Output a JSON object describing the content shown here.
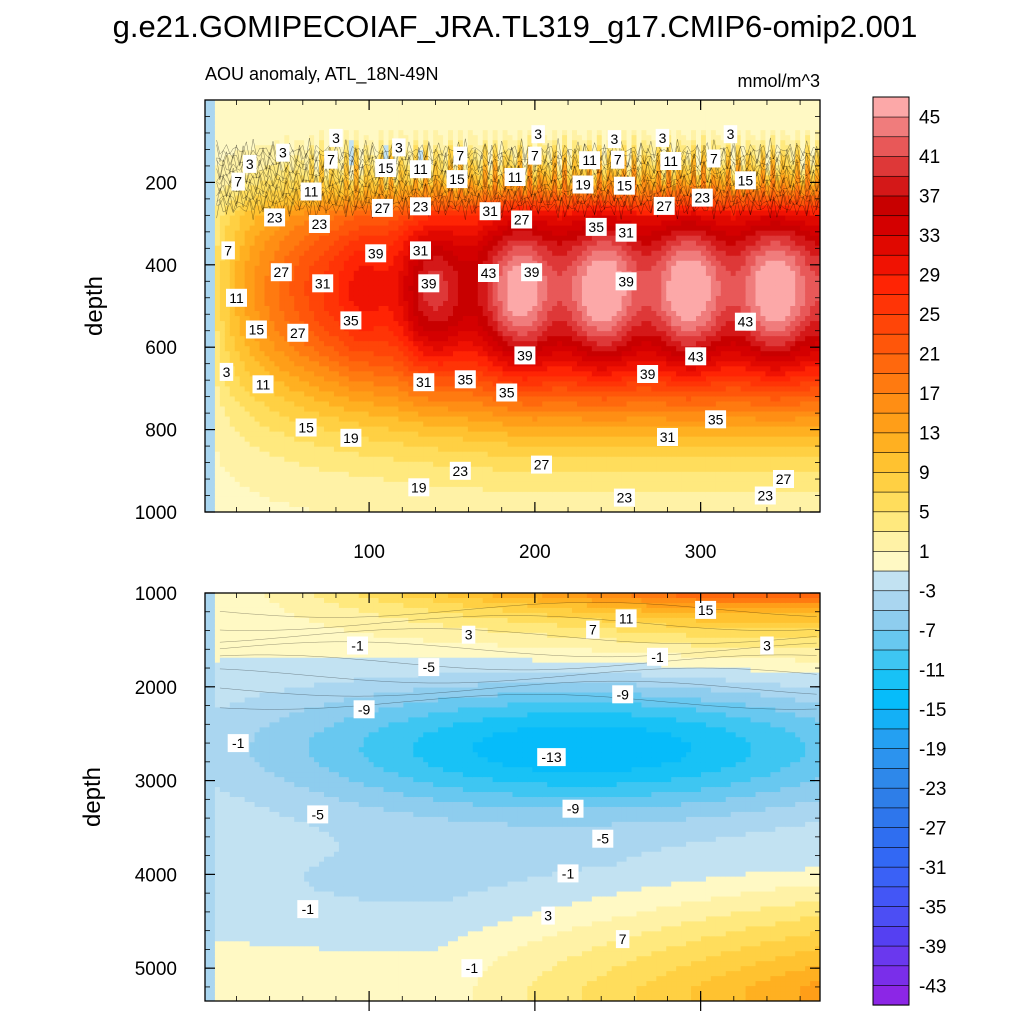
{
  "chart_data": {
    "type": "heatmap",
    "title": "g.e21.GOMIPECOIAF_JRA.TL319_g17.CMIP6-omip2.001",
    "subtitle_left": "AOU anomaly, ATL_18N-49N",
    "subtitle_right": "mmol/m^3",
    "ylabel": "depth",
    "xlabel": "",
    "xlim": [
      1,
      372
    ],
    "xticks": [
      100,
      200,
      300
    ],
    "xtick_labels": [
      "100",
      "200",
      "300"
    ],
    "panels": [
      {
        "name": "upper",
        "ylim": [
          1000,
          0
        ],
        "yticks": [
          200,
          400,
          600,
          800,
          1000
        ],
        "ytick_labels": [
          "200",
          "400",
          "600",
          "800",
          "1000"
        ],
        "contour_labels": [
          {
            "x": 80,
            "y": 92,
            "text": "3"
          },
          {
            "x": 118,
            "y": 115,
            "text": "3"
          },
          {
            "x": 202,
            "y": 83,
            "text": "3"
          },
          {
            "x": 248,
            "y": 95,
            "text": "3"
          },
          {
            "x": 277,
            "y": 92,
            "text": "3"
          },
          {
            "x": 318,
            "y": 83,
            "text": "3"
          },
          {
            "x": 48,
            "y": 128,
            "text": "3"
          },
          {
            "x": 28,
            "y": 155,
            "text": "3"
          },
          {
            "x": 77,
            "y": 145,
            "text": "7"
          },
          {
            "x": 155,
            "y": 135,
            "text": "7"
          },
          {
            "x": 200,
            "y": 135,
            "text": "7"
          },
          {
            "x": 250,
            "y": 145,
            "text": "7"
          },
          {
            "x": 308,
            "y": 142,
            "text": "7"
          },
          {
            "x": 21,
            "y": 198,
            "text": "7"
          },
          {
            "x": 110,
            "y": 165,
            "text": "15"
          },
          {
            "x": 131,
            "y": 168,
            "text": "11"
          },
          {
            "x": 65,
            "y": 222,
            "text": "11"
          },
          {
            "x": 153,
            "y": 192,
            "text": "15"
          },
          {
            "x": 188,
            "y": 187,
            "text": "11"
          },
          {
            "x": 233,
            "y": 146,
            "text": "11"
          },
          {
            "x": 282,
            "y": 148,
            "text": "11"
          },
          {
            "x": 229,
            "y": 205,
            "text": "19"
          },
          {
            "x": 254,
            "y": 208,
            "text": "15"
          },
          {
            "x": 327,
            "y": 195,
            "text": "15"
          },
          {
            "x": 43,
            "y": 285,
            "text": "23"
          },
          {
            "x": 70,
            "y": 301,
            "text": "23"
          },
          {
            "x": 108,
            "y": 262,
            "text": "27"
          },
          {
            "x": 131,
            "y": 258,
            "text": "23"
          },
          {
            "x": 173,
            "y": 270,
            "text": "31"
          },
          {
            "x": 192,
            "y": 290,
            "text": "27"
          },
          {
            "x": 237,
            "y": 308,
            "text": "35"
          },
          {
            "x": 255,
            "y": 322,
            "text": "31"
          },
          {
            "x": 278,
            "y": 257,
            "text": "27"
          },
          {
            "x": 301,
            "y": 237,
            "text": "23"
          },
          {
            "x": 15,
            "y": 365,
            "text": "7"
          },
          {
            "x": 47,
            "y": 418,
            "text": "27"
          },
          {
            "x": 72,
            "y": 445,
            "text": "31"
          },
          {
            "x": 104,
            "y": 372,
            "text": "39"
          },
          {
            "x": 131,
            "y": 365,
            "text": "31"
          },
          {
            "x": 136,
            "y": 445,
            "text": "39"
          },
          {
            "x": 172,
            "y": 420,
            "text": "43"
          },
          {
            "x": 198,
            "y": 418,
            "text": "39"
          },
          {
            "x": 255,
            "y": 440,
            "text": "39"
          },
          {
            "x": 20,
            "y": 480,
            "text": "11"
          },
          {
            "x": 32,
            "y": 557,
            "text": "15"
          },
          {
            "x": 57,
            "y": 565,
            "text": "27"
          },
          {
            "x": 89,
            "y": 535,
            "text": "35"
          },
          {
            "x": 194,
            "y": 620,
            "text": "39"
          },
          {
            "x": 297,
            "y": 622,
            "text": "43"
          },
          {
            "x": 327,
            "y": 538,
            "text": "43"
          },
          {
            "x": 14,
            "y": 660,
            "text": "3"
          },
          {
            "x": 36,
            "y": 690,
            "text": "11"
          },
          {
            "x": 133,
            "y": 685,
            "text": "31"
          },
          {
            "x": 158,
            "y": 678,
            "text": "35"
          },
          {
            "x": 183,
            "y": 710,
            "text": "35"
          },
          {
            "x": 268,
            "y": 665,
            "text": "39"
          },
          {
            "x": 62,
            "y": 795,
            "text": "15"
          },
          {
            "x": 89,
            "y": 820,
            "text": "19"
          },
          {
            "x": 280,
            "y": 818,
            "text": "31"
          },
          {
            "x": 309,
            "y": 775,
            "text": "35"
          },
          {
            "x": 130,
            "y": 940,
            "text": "19"
          },
          {
            "x": 155,
            "y": 900,
            "text": "23"
          },
          {
            "x": 204,
            "y": 885,
            "text": "27"
          },
          {
            "x": 254,
            "y": 965,
            "text": "23"
          },
          {
            "x": 350,
            "y": 920,
            "text": "27"
          },
          {
            "x": 339,
            "y": 960,
            "text": "23"
          }
        ]
      },
      {
        "name": "lower",
        "ylim": [
          5350,
          1000
        ],
        "yticks": [
          1000,
          2000,
          3000,
          4000,
          5000
        ],
        "ytick_labels": [
          "1000",
          "2000",
          "3000",
          "4000",
          "5000"
        ],
        "contour_labels": [
          {
            "x": 93,
            "y": 1560,
            "text": "-1"
          },
          {
            "x": 160,
            "y": 1445,
            "text": "3"
          },
          {
            "x": 235,
            "y": 1390,
            "text": "7"
          },
          {
            "x": 255,
            "y": 1270,
            "text": "11"
          },
          {
            "x": 303,
            "y": 1180,
            "text": "15"
          },
          {
            "x": 340,
            "y": 1560,
            "text": "3"
          },
          {
            "x": 274,
            "y": 1680,
            "text": "-1"
          },
          {
            "x": 136,
            "y": 1790,
            "text": "-5"
          },
          {
            "x": 253,
            "y": 2080,
            "text": "-9"
          },
          {
            "x": 97,
            "y": 2240,
            "text": "-9"
          },
          {
            "x": 21,
            "y": 2600,
            "text": "-1"
          },
          {
            "x": 210,
            "y": 2750,
            "text": "-13"
          },
          {
            "x": 69,
            "y": 3360,
            "text": "-5"
          },
          {
            "x": 223,
            "y": 3300,
            "text": "-9"
          },
          {
            "x": 241,
            "y": 3620,
            "text": "-5"
          },
          {
            "x": 220,
            "y": 3990,
            "text": "-1"
          },
          {
            "x": 63,
            "y": 4370,
            "text": "-1"
          },
          {
            "x": 208,
            "y": 4440,
            "text": "3"
          },
          {
            "x": 253,
            "y": 4690,
            "text": "7"
          },
          {
            "x": 162,
            "y": 5000,
            "text": "-1"
          }
        ]
      }
    ],
    "colorbar": {
      "levels": [
        -45,
        -43,
        -41,
        -39,
        -37,
        -35,
        -33,
        -31,
        -29,
        -27,
        -25,
        -23,
        -21,
        -19,
        -17,
        -15,
        -13,
        -11,
        -9,
        -7,
        -5,
        -3,
        -1,
        1,
        3,
        5,
        7,
        9,
        11,
        13,
        15,
        17,
        19,
        21,
        23,
        25,
        27,
        29,
        31,
        33,
        35,
        37,
        39,
        41,
        43,
        45,
        47
      ],
      "labels": [
        "45",
        "41",
        "37",
        "33",
        "29",
        "25",
        "21",
        "17",
        "13",
        "9",
        "5",
        "1",
        "-3",
        "-7",
        "-11",
        "-15",
        "-19",
        "-23",
        "-27",
        "-31",
        "-35",
        "-39",
        "-43"
      ],
      "colors": [
        "#8c26e6",
        "#7a2eea",
        "#6a38ee",
        "#5540f2",
        "#4c4ef4",
        "#4356f6",
        "#3a61f6",
        "#3268f4",
        "#2f6ef0",
        "#2e76ec",
        "#2e7ee8",
        "#2e88ea",
        "#2c93ee",
        "#24a0f2",
        "#14b0f6",
        "#06bcfa",
        "#18c2f6",
        "#3ec6f2",
        "#68c8f0",
        "#8ecdee",
        "#aad6f0",
        "#c2e2f2",
        "#fff9c4",
        "#fff2a6",
        "#ffe97e",
        "#ffdd5c",
        "#ffd043",
        "#ffc230",
        "#ffb021",
        "#ff9e18",
        "#ff8e14",
        "#ff7a10",
        "#ff680d",
        "#ff560a",
        "#ff4508",
        "#ff3406",
        "#ff2404",
        "#f01202",
        "#e00800",
        "#d40000",
        "#c80000",
        "#d41818",
        "#de3838",
        "#e85858",
        "#f07c7c",
        "#fca8a8"
      ]
    }
  }
}
